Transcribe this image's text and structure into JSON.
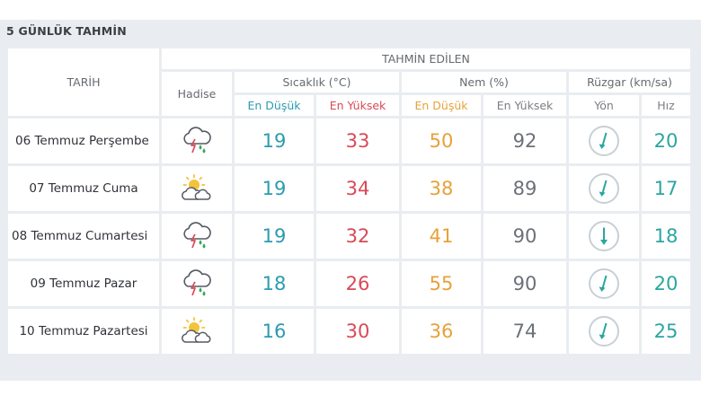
{
  "title": "5 GÜNLÜK TAHMİN",
  "headers": {
    "date": "TARİH",
    "predicted": "TAHMİN EDİLEN",
    "event": "Hadise",
    "temperature": "Sıcaklık (°C)",
    "humidity": "Nem (%)",
    "wind": "Rüzgar (km/sa)",
    "temp_min": "En Düşük",
    "temp_max": "En Yüksek",
    "hum_min": "En Düşük",
    "hum_max": "En Yüksek",
    "wind_dir": "Yön",
    "wind_speed": "Hız"
  },
  "days": [
    {
      "date": "06 Temmuz Perşembe",
      "icon": "thunderstorm-rain-icon",
      "temp_min": "19",
      "temp_max": "33",
      "hum_min": "50",
      "hum_max": "92",
      "wind_dir_icon": "wind-direction-southwest-icon",
      "wind_speed": "20"
    },
    {
      "date": "07 Temmuz Cuma",
      "icon": "partly-cloudy-sun-icon",
      "temp_min": "19",
      "temp_max": "34",
      "hum_min": "38",
      "hum_max": "89",
      "wind_dir_icon": "wind-direction-southwest-icon",
      "wind_speed": "17"
    },
    {
      "date": "08 Temmuz Cumartesi",
      "icon": "thunderstorm-rain-icon",
      "temp_min": "19",
      "temp_max": "32",
      "hum_min": "41",
      "hum_max": "90",
      "wind_dir_icon": "wind-direction-south-icon",
      "wind_speed": "18"
    },
    {
      "date": "09 Temmuz Pazar",
      "icon": "thunderstorm-rain-icon",
      "temp_min": "18",
      "temp_max": "26",
      "hum_min": "55",
      "hum_max": "90",
      "wind_dir_icon": "wind-direction-southwest-icon",
      "wind_speed": "20"
    },
    {
      "date": "10 Temmuz Pazartesi",
      "icon": "partly-cloudy-sun-icon",
      "temp_min": "16",
      "temp_max": "30",
      "hum_min": "36",
      "hum_max": "74",
      "wind_dir_icon": "wind-direction-southwest-icon",
      "wind_speed": "25"
    }
  ],
  "colors": {
    "min_temp": "#2b9bb0",
    "max_temp": "#d84a57",
    "humidity_min": "#e8a13a",
    "humidity_max": "#6c7078",
    "wind_speed": "#2aa6a0",
    "panel_bg": "#e9edf1"
  }
}
